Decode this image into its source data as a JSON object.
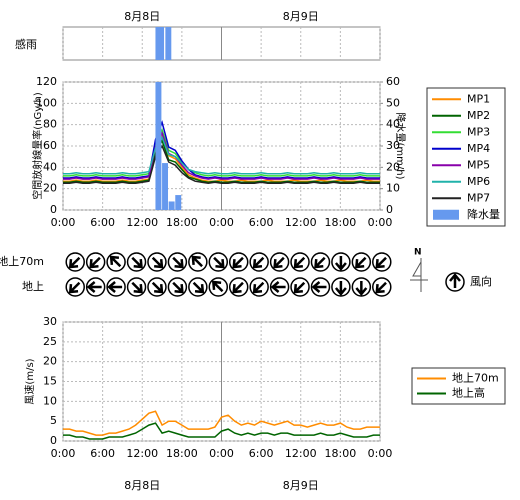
{
  "chart_data": [
    {
      "type": "strip",
      "label": "感雨",
      "dates": [
        {
          "value": 12,
          "label": "8月8日"
        },
        {
          "value": 36,
          "label": "8月9日"
        }
      ],
      "xlim": [
        0,
        48
      ],
      "xticks": [
        0,
        6,
        12,
        18,
        24,
        30,
        36,
        42,
        48
      ],
      "color": "#6699ee",
      "periods": [
        {
          "start": 14,
          "end": 15.3
        },
        {
          "start": 15.5,
          "end": 16.4
        }
      ]
    },
    {
      "type": "line",
      "ylabel": "空間放射線量率(nGy/h)",
      "y2label": "降水量(mm/h)",
      "xlim": [
        0,
        48
      ],
      "xticks": [
        {
          "value": 0,
          "label": "0:00"
        },
        {
          "value": 6,
          "label": "6:00"
        },
        {
          "value": 12,
          "label": "12:00"
        },
        {
          "value": 18,
          "label": "18:00"
        },
        {
          "value": 24,
          "label": "0:00"
        },
        {
          "value": 30,
          "label": "6:00"
        },
        {
          "value": 36,
          "label": "12:00"
        },
        {
          "value": 42,
          "label": "18:00"
        },
        {
          "value": 48,
          "label": "0:00"
        }
      ],
      "ylim": [
        0,
        120
      ],
      "yticks": [
        0,
        20,
        40,
        60,
        80,
        100,
        120
      ],
      "y2lim": [
        0,
        60
      ],
      "y2ticks": [
        0,
        10,
        20,
        30,
        40,
        50,
        60
      ],
      "grid": true,
      "x": [
        0,
        1,
        2,
        3,
        4,
        5,
        6,
        7,
        8,
        9,
        10,
        11,
        12,
        13,
        14,
        15,
        16,
        17,
        18,
        19,
        20,
        21,
        22,
        23,
        24,
        25,
        26,
        27,
        28,
        29,
        30,
        31,
        32,
        33,
        34,
        35,
        36,
        37,
        38,
        39,
        40,
        41,
        42,
        43,
        44,
        45,
        46,
        47,
        48
      ],
      "series": [
        {
          "name": "MP1",
          "color": "#ff8c00",
          "values": [
            27,
            27,
            28,
            27,
            27,
            28,
            27,
            27,
            27,
            28,
            27,
            27,
            28,
            29,
            57,
            70,
            51,
            48,
            40,
            33,
            30,
            28,
            27,
            27,
            28,
            27,
            27,
            28,
            27,
            27,
            27,
            28,
            27,
            27,
            27,
            28,
            27,
            27,
            27,
            28,
            27,
            27,
            28,
            27,
            27,
            27,
            28,
            27,
            27
          ]
        },
        {
          "name": "MP2",
          "color": "#006400",
          "values": [
            26,
            26,
            27,
            26,
            26,
            27,
            26,
            26,
            26,
            27,
            26,
            26,
            27,
            28,
            53,
            65,
            47,
            45,
            38,
            31,
            29,
            27,
            26,
            27,
            26,
            26,
            27,
            26,
            26,
            26,
            27,
            26,
            26,
            26,
            27,
            26,
            26,
            26,
            27,
            26,
            26,
            27,
            26,
            26,
            26,
            27,
            26,
            26,
            26
          ]
        },
        {
          "name": "MP3",
          "color": "#33dd33",
          "values": [
            32,
            32,
            33,
            32,
            32,
            33,
            32,
            32,
            32,
            33,
            32,
            32,
            33,
            34,
            62,
            75,
            56,
            53,
            45,
            38,
            35,
            33,
            32,
            33,
            32,
            32,
            33,
            32,
            32,
            32,
            33,
            32,
            32,
            32,
            33,
            32,
            32,
            32,
            33,
            32,
            32,
            33,
            32,
            32,
            32,
            33,
            32,
            32,
            32
          ]
        },
        {
          "name": "MP4",
          "color": "#0000cc",
          "values": [
            30,
            30,
            31,
            30,
            30,
            31,
            30,
            30,
            30,
            31,
            30,
            30,
            31,
            32,
            66,
            82,
            59,
            56,
            46,
            38,
            33,
            31,
            30,
            31,
            30,
            30,
            31,
            30,
            30,
            30,
            31,
            30,
            30,
            30,
            31,
            30,
            30,
            30,
            31,
            30,
            30,
            31,
            30,
            30,
            30,
            31,
            30,
            30,
            30
          ]
        },
        {
          "name": "MP5",
          "color": "#8800aa",
          "values": [
            29,
            29,
            30,
            29,
            29,
            30,
            29,
            29,
            29,
            30,
            29,
            29,
            30,
            31,
            59,
            72,
            53,
            50,
            42,
            35,
            32,
            30,
            29,
            30,
            29,
            29,
            30,
            29,
            29,
            29,
            30,
            29,
            29,
            29,
            30,
            29,
            29,
            29,
            30,
            29,
            29,
            30,
            29,
            29,
            29,
            30,
            29,
            29,
            29
          ]
        },
        {
          "name": "MP6",
          "color": "#20b2aa",
          "values": [
            34,
            34,
            35,
            34,
            34,
            35,
            34,
            34,
            34,
            35,
            34,
            34,
            35,
            36,
            58,
            68,
            52,
            50,
            44,
            38,
            36,
            35,
            34,
            35,
            34,
            34,
            35,
            34,
            34,
            34,
            35,
            34,
            34,
            34,
            35,
            34,
            34,
            34,
            35,
            34,
            34,
            35,
            34,
            34,
            34,
            35,
            34,
            34,
            34
          ]
        },
        {
          "name": "MP7",
          "color": "#222222",
          "values": [
            25,
            25,
            26,
            25,
            25,
            26,
            25,
            25,
            25,
            26,
            25,
            25,
            26,
            27,
            50,
            60,
            45,
            42,
            35,
            30,
            27,
            26,
            25,
            26,
            25,
            25,
            26,
            25,
            25,
            25,
            26,
            25,
            25,
            25,
            26,
            25,
            25,
            25,
            26,
            25,
            25,
            26,
            25,
            25,
            25,
            26,
            25,
            25,
            25
          ]
        },
        {
          "name": "降水量",
          "color": "#6699ee",
          "type": "bar",
          "axis": "y2",
          "values": [
            null,
            null,
            null,
            null,
            null,
            null,
            null,
            null,
            null,
            null,
            null,
            null,
            null,
            null,
            60,
            22,
            4,
            7,
            null,
            null,
            null,
            null,
            null,
            null,
            null,
            null,
            null,
            null,
            null,
            null,
            null,
            null,
            null,
            null,
            null,
            null,
            null,
            null,
            null,
            null,
            null,
            null,
            null,
            null,
            null,
            null,
            null,
            null,
            null
          ]
        }
      ]
    },
    {
      "type": "wind_direction",
      "legend": "風向",
      "north": "N",
      "rows": [
        {
          "name": "地上70m",
          "directions": [
            "NE",
            "NE",
            "SE",
            "NW",
            "NW",
            "NW",
            "SE",
            "NW",
            "NE",
            "NE",
            "NE",
            "NE",
            "NE",
            "N",
            "NE",
            "NE"
          ]
        },
        {
          "name": "地上",
          "directions": [
            "NE",
            "E",
            "E",
            "NW",
            "NW",
            "NW",
            "NW",
            "SE",
            "NE",
            "NE",
            "E",
            "NE",
            "E",
            "N",
            "N",
            "NE"
          ]
        }
      ]
    },
    {
      "type": "line",
      "ylabel": "風速(m/s)",
      "dates": [
        {
          "value": 12,
          "label": "8月8日"
        },
        {
          "value": 36,
          "label": "8月9日"
        }
      ],
      "xlim": [
        0,
        48
      ],
      "xticks": [
        {
          "value": 0,
          "label": "0:00"
        },
        {
          "value": 6,
          "label": "6:00"
        },
        {
          "value": 12,
          "label": "12:00"
        },
        {
          "value": 18,
          "label": "18:00"
        },
        {
          "value": 24,
          "label": "0:00"
        },
        {
          "value": 30,
          "label": "6:00"
        },
        {
          "value": 36,
          "label": "12:00"
        },
        {
          "value": 42,
          "label": "18:00"
        },
        {
          "value": 48,
          "label": "0:00"
        }
      ],
      "ylim": [
        0,
        30
      ],
      "yticks": [
        0,
        5,
        10,
        15,
        20,
        25,
        30
      ],
      "grid": true,
      "x": [
        0,
        1,
        2,
        3,
        4,
        5,
        6,
        7,
        8,
        9,
        10,
        11,
        12,
        13,
        14,
        15,
        16,
        17,
        18,
        19,
        20,
        21,
        22,
        23,
        24,
        25,
        26,
        27,
        28,
        29,
        30,
        31,
        32,
        33,
        34,
        35,
        36,
        37,
        38,
        39,
        40,
        41,
        42,
        43,
        44,
        45,
        46,
        47,
        48
      ],
      "series": [
        {
          "name": "地上70m",
          "color": "#ff8c00",
          "values": [
            3,
            3,
            2.5,
            2.5,
            2,
            1.5,
            1.5,
            2,
            2,
            2.5,
            3,
            4,
            5.5,
            7,
            7.5,
            4,
            5,
            5,
            4,
            3,
            3,
            3,
            3,
            3.5,
            6,
            6.5,
            5,
            4,
            4.5,
            4,
            5,
            4.5,
            4,
            4.5,
            5,
            4,
            4,
            3.5,
            4,
            4.5,
            4,
            4,
            4.5,
            3.5,
            3,
            3,
            3.5,
            3.5,
            3.5
          ]
        },
        {
          "name": "地上高",
          "color": "#006400",
          "values": [
            1.5,
            1.5,
            1,
            1,
            0.5,
            0.5,
            0.5,
            1,
            1,
            1,
            1.5,
            2,
            3,
            4,
            4.5,
            2,
            2.5,
            2,
            1.5,
            1,
            1,
            1,
            1,
            1,
            2.5,
            3,
            2,
            1.5,
            2,
            1.5,
            2,
            2,
            1.5,
            2,
            2,
            1.5,
            1.5,
            1.5,
            1.5,
            2,
            1.5,
            1.5,
            2,
            1.5,
            1,
            1,
            1,
            1.5,
            1.5
          ]
        }
      ]
    }
  ]
}
